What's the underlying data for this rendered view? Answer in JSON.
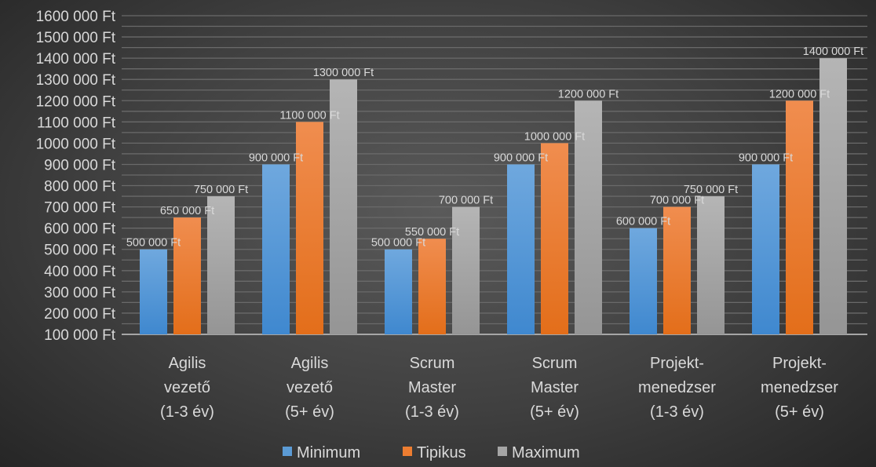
{
  "chart_data": {
    "type": "bar",
    "title": "",
    "xlabel": "",
    "ylabel": "",
    "categories": [
      [
        "Agilis",
        "vezető",
        "(1-3 év)"
      ],
      [
        "Agilis",
        "vezető",
        "(5+ év)"
      ],
      [
        "Scrum",
        "Master",
        "(1-3 év)"
      ],
      [
        "Scrum",
        "Master",
        "(5+ év)"
      ],
      [
        "Projekt-",
        "menedzser",
        "(1-3 év)"
      ],
      [
        "Projekt-",
        "menedzser",
        "(5+ év)"
      ]
    ],
    "series": [
      {
        "name": "Minimum",
        "values": [
          500000,
          900000,
          500000,
          900000,
          600000,
          900000
        ],
        "color": "#5b9bd5",
        "labels": [
          "500 000 Ft",
          "900 000 Ft",
          "500 000 Ft",
          "900 000 Ft",
          "600 000 Ft",
          "900 000 Ft"
        ]
      },
      {
        "name": "Tipikus",
        "values": [
          650000,
          1100000,
          550000,
          1000000,
          700000,
          1200000
        ],
        "color": "#ed7d31",
        "labels": [
          "650 000 Ft",
          "1100 000 Ft",
          "550 000 Ft",
          "1000 000 Ft",
          "700 000 Ft",
          "1200 000 Ft"
        ]
      },
      {
        "name": "Maximum",
        "values": [
          750000,
          1300000,
          700000,
          1200000,
          750000,
          1400000
        ],
        "color": "#a5a5a5",
        "labels": [
          "750 000 Ft",
          "1300 000 Ft",
          "700 000 Ft",
          "1200 000 Ft",
          "750 000 Ft",
          "1400 000 Ft"
        ]
      }
    ],
    "ylim": [
      100000,
      1600000
    ],
    "yticks": [
      "100 000 Ft",
      "200 000 Ft",
      "300 000 Ft",
      "400 000 Ft",
      "500 000 Ft",
      "600 000 Ft",
      "700 000 Ft",
      "800 000 Ft",
      "900 000 Ft",
      "1000 000 Ft",
      "1100 000 Ft",
      "1200 000 Ft",
      "1300 000 Ft",
      "1400 000 Ft",
      "1500 000 Ft",
      "1600 000 Ft"
    ],
    "grid": true,
    "legend": "bottom"
  }
}
